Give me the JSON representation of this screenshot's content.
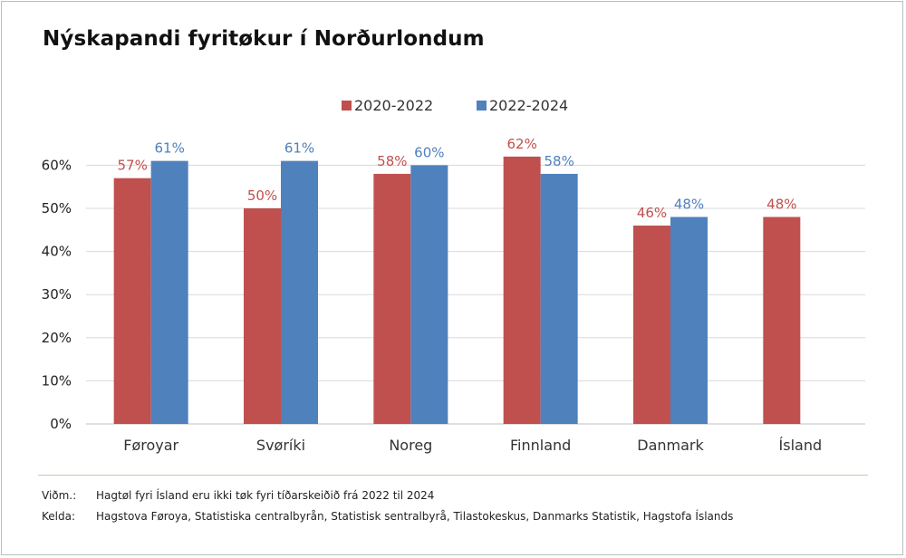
{
  "title": "Nýskapandi fyritøkur í Norðurlondum",
  "footer": {
    "note_label": "Viðm.:",
    "note_text": "Hagtøl fyri Ísland eru ikki tøk fyri tíðarskeiðið frá 2022 til 2024",
    "source_label": "Kelda:",
    "source_text": "Hagstova Føroya, Statistiska centralbyrån, Statistisk sentralbyrå, Tilastokeskus, Danmarks Statistik, Hagstofa Íslands"
  },
  "chart_data": {
    "type": "bar",
    "categories": [
      "Føroyar",
      "Svøríki",
      "Noreg",
      "Finnland",
      "Danmark",
      "Ísland"
    ],
    "series": [
      {
        "name": "2020-2022",
        "color": "#c0504d",
        "values": [
          57,
          50,
          58,
          62,
          46,
          48
        ],
        "labels": [
          "57%",
          "50%",
          "58%",
          "62%",
          "46%",
          "48%"
        ]
      },
      {
        "name": "2022-2024",
        "color": "#4f81bd",
        "values": [
          61,
          61,
          60,
          58,
          48,
          null
        ],
        "labels": [
          "61%",
          "61%",
          "60%",
          "58%",
          "48%",
          ""
        ]
      }
    ],
    "yticks": [
      "0%",
      "10%",
      "20%",
      "30%",
      "40%",
      "50%",
      "60%"
    ],
    "ylim": [
      0,
      60
    ],
    "grid": true,
    "legend_position": "top-center",
    "xlabel": "",
    "ylabel": ""
  }
}
